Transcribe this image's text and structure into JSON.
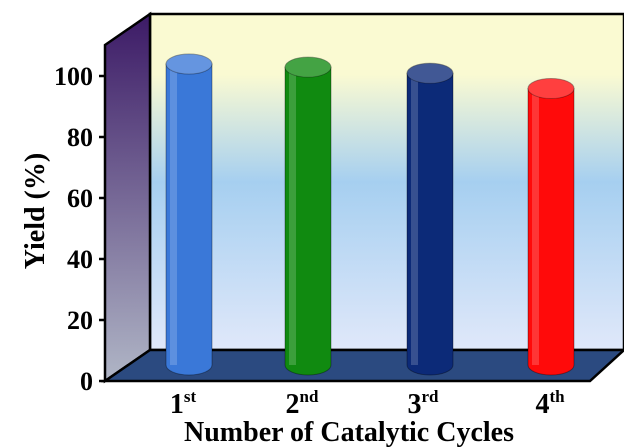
{
  "chart_data": {
    "type": "bar",
    "style": "3d-cylinder",
    "categories": [
      {
        "base": "1",
        "sup": "st"
      },
      {
        "base": "2",
        "sup": "nd"
      },
      {
        "base": "3",
        "sup": "rd"
      },
      {
        "base": "4",
        "sup": "th"
      }
    ],
    "values": [
      99,
      98,
      96,
      91
    ],
    "bar_colors": [
      "#3a78d8",
      "#108a10",
      "#0c2a78",
      "#ff0a0a"
    ],
    "xlabel": "Number of Catalytic Cycles",
    "ylabel": "Yield (%)",
    "ylim": [
      0,
      100
    ],
    "yticks": [
      0,
      20,
      40,
      60,
      80,
      100
    ],
    "grid": false,
    "legend": "none",
    "colors": {
      "back_wall_top": "#fafad2",
      "back_wall_middle": "#a6cff0",
      "back_wall_bottom": "#e0e8fa",
      "side_wall_top": "#3c1a66",
      "side_wall_bottom": "#b0b6c6",
      "floor": "#2b4a80"
    }
  }
}
